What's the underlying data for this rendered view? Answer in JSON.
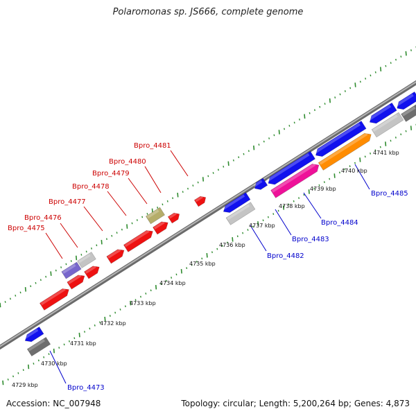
{
  "title": "Polaromonas sp. JS666, complete genome",
  "footer": {
    "accession": "Accession: NC_007948",
    "summary": "Topology: circular; Length: 5,200,264 bp; Genes: 4,873"
  },
  "colors": {
    "backbone": "#888888",
    "ticks": "#2e8b2e",
    "forward_label": "#cc0000",
    "reverse_label": "#0000cc"
  },
  "scale_labels": [
    "4729 kbp",
    "4730 kbp",
    "4731 kbp",
    "4732 kbp",
    "4733 kbp",
    "4734 kbp",
    "4735 kbp",
    "4736 kbp",
    "4737 kbp",
    "4738 kbp",
    "4739 kbp",
    "4740 kbp",
    "4741 kbp"
  ],
  "gene_labels": {
    "Bpro_4473": "Bpro_4473",
    "Bpro_4475": "Bpro_4475",
    "Bpro_4476": "Bpro_4476",
    "Bpro_4477": "Bpro_4477",
    "Bpro_4478": "Bpro_4478",
    "Bpro_4479": "Bpro_4479",
    "Bpro_4480": "Bpro_4480",
    "Bpro_4481": "Bpro_4481",
    "Bpro_4482": "Bpro_4482",
    "Bpro_4483": "Bpro_4483",
    "Bpro_4484": "Bpro_4484",
    "Bpro_4485": "Bpro_4485"
  }
}
